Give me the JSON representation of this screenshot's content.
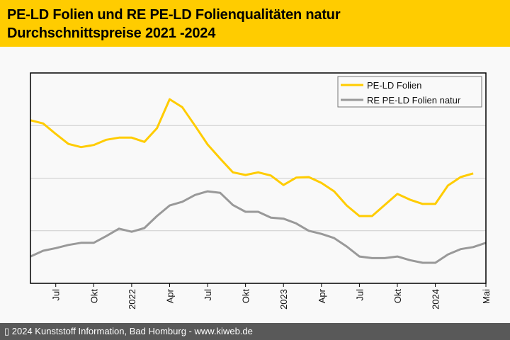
{
  "header": {
    "title_line1": "PE-LD Folien und RE PE-LD Folienqualitäten natur",
    "title_line2": "Durchschnittspreise 2021 -2024"
  },
  "footer": {
    "copyright": "▯ 2024 Kunststoff Information, Bad Homburg - www.kiweb.de"
  },
  "colors": {
    "header_bg": "#ffcc00",
    "footer_bg": "#595959",
    "series_pe_ld": "#ffcc00",
    "series_re_pe_ld": "#999999",
    "gridline": "#cccccc"
  },
  "chart_data": {
    "type": "line",
    "title": "PE-LD Folien und RE PE-LD Folienqualitäten natur Durchschnittspreise 2021 -2024",
    "xlabel": "",
    "ylabel": "",
    "y_units_note": "y-axis unlabeled; values in relative gridline units (0 = axis bottom, 1 per gridline)",
    "ylim": [
      0,
      4
    ],
    "y_gridlines": [
      1,
      2,
      3
    ],
    "grid": true,
    "legend_position": "top-right",
    "x_start": "2021-05",
    "x_end": "2024-05",
    "x_ticks": [
      {
        "label": "Jul",
        "month_index": 2
      },
      {
        "label": "Okt",
        "month_index": 5
      },
      {
        "label": "2022",
        "month_index": 8
      },
      {
        "label": "Apr",
        "month_index": 11
      },
      {
        "label": "Jul",
        "month_index": 14
      },
      {
        "label": "Okt",
        "month_index": 17
      },
      {
        "label": "2023",
        "month_index": 20
      },
      {
        "label": "Apr",
        "month_index": 23
      },
      {
        "label": "Jul",
        "month_index": 26
      },
      {
        "label": "Okt",
        "month_index": 29
      },
      {
        "label": "2024",
        "month_index": 32
      },
      {
        "label": "Mai",
        "month_index": 36
      }
    ],
    "series": [
      {
        "name": "PE-LD Folien",
        "color": "#ffcc00",
        "start_month_index": 0,
        "values": [
          3.1,
          3.04,
          2.84,
          2.65,
          2.59,
          2.63,
          2.73,
          2.77,
          2.77,
          2.69,
          2.95,
          3.5,
          3.35,
          3.0,
          2.64,
          2.37,
          2.11,
          2.06,
          2.11,
          2.05,
          1.87,
          2.01,
          2.02,
          1.91,
          1.75,
          1.48,
          1.28,
          1.28,
          1.49,
          1.7,
          1.59,
          1.51,
          1.51,
          1.86,
          2.02,
          2.09
        ]
      },
      {
        "name": "RE PE-LD Folien natur",
        "color": "#999999",
        "start_month_index": 0,
        "values": [
          0.51,
          0.62,
          0.67,
          0.73,
          0.77,
          0.77,
          0.9,
          1.04,
          0.98,
          1.05,
          1.28,
          1.48,
          1.55,
          1.68,
          1.75,
          1.72,
          1.49,
          1.36,
          1.36,
          1.25,
          1.23,
          1.14,
          1.0,
          0.94,
          0.86,
          0.7,
          0.51,
          0.48,
          0.48,
          0.51,
          0.44,
          0.39,
          0.39,
          0.55,
          0.65,
          0.69,
          0.77
        ]
      }
    ]
  }
}
